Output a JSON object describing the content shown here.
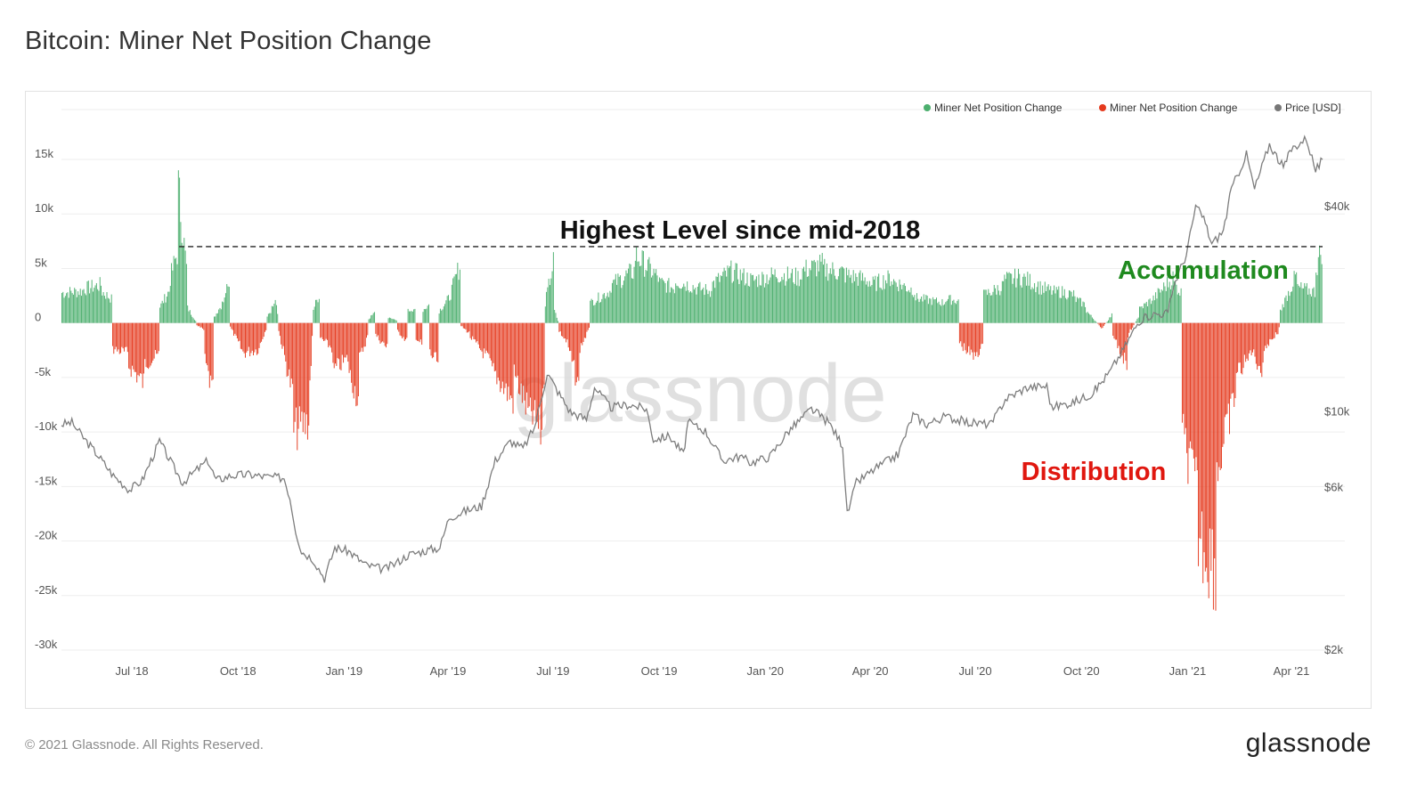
{
  "page": {
    "title": "Bitcoin: Miner Net Position Change",
    "footer": "© 2021 Glassnode. All Rights Reserved.",
    "brand": "glassnode",
    "watermark": "glassnode"
  },
  "chart_data": {
    "type": "bar",
    "title": "Bitcoin: Miner Net Position Change",
    "x_range": [
      "2018-05-01",
      "2021-04-28"
    ],
    "x_ticks": [
      {
        "date": "2018-07-01",
        "label": "Jul '18"
      },
      {
        "date": "2018-10-01",
        "label": "Oct '18"
      },
      {
        "date": "2019-01-01",
        "label": "Jan '19"
      },
      {
        "date": "2019-04-01",
        "label": "Apr '19"
      },
      {
        "date": "2019-07-01",
        "label": "Jul '19"
      },
      {
        "date": "2019-10-01",
        "label": "Oct '19"
      },
      {
        "date": "2020-01-01",
        "label": "Jan '20"
      },
      {
        "date": "2020-04-01",
        "label": "Apr '20"
      },
      {
        "date": "2020-07-01",
        "label": "Jul '20"
      },
      {
        "date": "2020-10-01",
        "label": "Oct '20"
      },
      {
        "date": "2021-01-01",
        "label": "Jan '21"
      },
      {
        "date": "2021-04-01",
        "label": "Apr '21"
      }
    ],
    "y_left": {
      "range": [
        -30000,
        15000
      ],
      "ticks": [
        15000,
        10000,
        5000,
        0,
        -5000,
        -10000,
        -15000,
        -20000,
        -25000,
        -30000
      ],
      "tick_labels": [
        "15k",
        "10k",
        "5k",
        "0",
        "-5k",
        "-10k",
        "-15k",
        "-20k",
        "-25k",
        "-30k"
      ]
    },
    "y_right": {
      "scale": "log",
      "ticks": [
        40000,
        10000,
        6000,
        2000
      ],
      "tick_labels": [
        "$40k",
        "$10k",
        "$6k",
        "$2k"
      ]
    },
    "legend": {
      "position": "top-right",
      "items": [
        {
          "label": "Miner Net Position Change",
          "color": "#4caf6e"
        },
        {
          "label": "Miner Net Position Change",
          "color": "#e53a1e"
        },
        {
          "label": "Price [USD]",
          "color": "#777777"
        }
      ]
    },
    "annotations": {
      "highest": {
        "text": "Highest Level since mid-2018",
        "level": 7000,
        "from": "2018-08-11",
        "to": "2021-04-28"
      },
      "accumulation": {
        "text": "Accumulation",
        "color": "#1f8a1f"
      },
      "distribution": {
        "text": "Distribution",
        "color": "#e0170f"
      }
    },
    "colors": {
      "positive": "#4caf6e",
      "negative": "#e53a1e",
      "price": "#777777",
      "grid": "#eeeeee"
    },
    "net_position_segments": [
      [
        "2018-05-01",
        3000,
        3200
      ],
      [
        "2018-05-20",
        3400,
        3800
      ],
      [
        "2018-06-05",
        3100,
        2400
      ],
      [
        "2018-06-14",
        -2600,
        -3000
      ],
      [
        "2018-06-28",
        -4200,
        -6000
      ],
      [
        "2018-07-12",
        -4000,
        -3200
      ],
      [
        "2018-07-25",
        1600,
        3200
      ],
      [
        "2018-08-03",
        4500,
        7000
      ],
      [
        "2018-08-10",
        13500,
        5500
      ],
      [
        "2018-08-18",
        1500,
        200
      ],
      [
        "2018-08-26",
        -200,
        -700
      ],
      [
        "2018-09-02",
        -3800,
        -7200
      ],
      [
        "2018-09-10",
        600,
        2300
      ],
      [
        "2018-09-20",
        3200,
        3400
      ],
      [
        "2018-09-24",
        -400,
        -2700
      ],
      [
        "2018-10-05",
        -3000,
        -2600
      ],
      [
        "2018-10-20",
        -2000,
        -600
      ],
      [
        "2018-10-26",
        600,
        1800
      ],
      [
        "2018-11-02",
        2400,
        800
      ],
      [
        "2018-11-05",
        -800,
        -7000
      ],
      [
        "2018-11-18",
        -10800,
        -9800
      ],
      [
        "2018-12-02",
        -6000,
        -1500
      ],
      [
        "2018-12-05",
        1400,
        2800
      ],
      [
        "2018-12-11",
        -1500,
        -2500
      ],
      [
        "2018-12-22",
        -4800,
        -3500
      ],
      [
        "2019-01-05",
        -5000,
        -7600
      ],
      [
        "2019-01-14",
        -3600,
        -1300
      ],
      [
        "2019-01-22",
        400,
        1000
      ],
      [
        "2019-01-28",
        -1200,
        -2500
      ],
      [
        "2019-02-08",
        500,
        300
      ],
      [
        "2019-02-16",
        -800,
        -1800
      ],
      [
        "2019-02-25",
        1200,
        1500
      ],
      [
        "2019-03-04",
        -1400,
        -2200
      ],
      [
        "2019-03-10",
        1300,
        1800
      ],
      [
        "2019-03-16",
        -3000,
        -4000
      ],
      [
        "2019-03-24",
        1200,
        2400
      ],
      [
        "2019-04-02",
        2600,
        5800
      ],
      [
        "2019-04-12",
        -300,
        -1000
      ],
      [
        "2019-04-20",
        -1400,
        -3800
      ],
      [
        "2019-05-08",
        -4500,
        -7800
      ],
      [
        "2019-05-28",
        -5000,
        -9500
      ],
      [
        "2019-06-12",
        -9000,
        -11000
      ],
      [
        "2019-06-22",
        -6000,
        -5500
      ],
      [
        "2019-06-24",
        2000,
        6000
      ],
      [
        "2019-07-02",
        1200,
        200
      ],
      [
        "2019-07-06",
        -800,
        -2000
      ],
      [
        "2019-07-14",
        -2500,
        -6500
      ],
      [
        "2019-07-24",
        -2500,
        -600
      ],
      [
        "2019-08-02",
        2000,
        3200
      ],
      [
        "2019-08-20",
        3800,
        5200
      ],
      [
        "2019-09-10",
        6800,
        4500
      ],
      [
        "2019-10-01",
        4000,
        3500
      ],
      [
        "2019-10-15",
        4200,
        3600
      ],
      [
        "2019-11-01",
        3500,
        3200
      ],
      [
        "2019-11-15",
        3800,
        5000
      ],
      [
        "2019-12-01",
        5200,
        4300
      ],
      [
        "2019-12-20",
        4200,
        4800
      ],
      [
        "2020-01-10",
        4900,
        4500
      ],
      [
        "2020-02-01",
        5200,
        5800
      ],
      [
        "2020-02-20",
        5400,
        5000
      ],
      [
        "2020-03-10",
        4800,
        4200
      ],
      [
        "2020-04-01",
        3800,
        4500
      ],
      [
        "2020-04-20",
        4200,
        3200
      ],
      [
        "2020-05-10",
        2500,
        2000
      ],
      [
        "2020-06-05",
        2400,
        2200
      ],
      [
        "2020-06-17",
        -2000,
        -3500
      ],
      [
        "2020-07-01",
        -3000,
        -2500
      ],
      [
        "2020-07-08",
        2800,
        3600
      ],
      [
        "2020-07-25",
        4200,
        4600
      ],
      [
        "2020-08-10",
        4500,
        3800
      ],
      [
        "2020-08-25",
        3600,
        3000
      ],
      [
        "2020-09-10",
        3200,
        2800
      ],
      [
        "2020-09-25",
        2400,
        1800
      ],
      [
        "2020-10-05",
        1200,
        -600
      ],
      [
        "2020-10-20",
        -300,
        800
      ],
      [
        "2020-10-28",
        -1500,
        -4000
      ],
      [
        "2020-11-10",
        -1200,
        600
      ],
      [
        "2020-11-20",
        1400,
        2600
      ],
      [
        "2020-12-05",
        2800,
        4500
      ],
      [
        "2020-12-20",
        4000,
        3000
      ],
      [
        "2020-12-27",
        -11000,
        -17000
      ],
      [
        "2021-01-10",
        -21000,
        -24000
      ],
      [
        "2021-01-26",
        -15000,
        -7000
      ],
      [
        "2021-02-12",
        -5000,
        -3500
      ],
      [
        "2021-02-24",
        -2500,
        -5000
      ],
      [
        "2021-03-08",
        -2500,
        -1000
      ],
      [
        "2021-03-20",
        -1200,
        -400
      ],
      [
        "2021-03-22",
        1200,
        4800
      ],
      [
        "2021-04-06",
        3500,
        3100
      ],
      [
        "2021-04-22",
        5500,
        7400
      ],
      [
        "2021-04-28",
        7000,
        7000
      ]
    ],
    "price_series": [
      [
        "2018-05-01",
        9200
      ],
      [
        "2018-05-10",
        9300
      ],
      [
        "2018-05-20",
        8400
      ],
      [
        "2018-06-01",
        7500
      ],
      [
        "2018-06-15",
        6500
      ],
      [
        "2018-06-29",
        5900
      ],
      [
        "2018-07-10",
        6300
      ],
      [
        "2018-07-25",
        8200
      ],
      [
        "2018-08-05",
        7000
      ],
      [
        "2018-08-14",
        6200
      ],
      [
        "2018-08-25",
        6700
      ],
      [
        "2018-09-05",
        7200
      ],
      [
        "2018-09-12",
        6300
      ],
      [
        "2018-09-25",
        6500
      ],
      [
        "2018-10-10",
        6550
      ],
      [
        "2018-10-25",
        6450
      ],
      [
        "2018-11-10",
        6400
      ],
      [
        "2018-11-15",
        5600
      ],
      [
        "2018-11-20",
        4500
      ],
      [
        "2018-11-25",
        3900
      ],
      [
        "2018-12-05",
        3700
      ],
      [
        "2018-12-15",
        3250
      ],
      [
        "2018-12-24",
        4000
      ],
      [
        "2019-01-05",
        3900
      ],
      [
        "2019-01-20",
        3550
      ],
      [
        "2019-02-05",
        3450
      ],
      [
        "2019-02-15",
        3600
      ],
      [
        "2019-02-25",
        3800
      ],
      [
        "2019-03-10",
        3900
      ],
      [
        "2019-03-25",
        4000
      ],
      [
        "2019-04-02",
        4900
      ],
      [
        "2019-04-15",
        5100
      ],
      [
        "2019-04-30",
        5300
      ],
      [
        "2019-05-12",
        7200
      ],
      [
        "2019-05-25",
        8200
      ],
      [
        "2019-06-05",
        7800
      ],
      [
        "2019-06-15",
        9000
      ],
      [
        "2019-06-26",
        13000
      ],
      [
        "2019-07-05",
        11500
      ],
      [
        "2019-07-16",
        10000
      ],
      [
        "2019-07-30",
        9500
      ],
      [
        "2019-08-06",
        11800
      ],
      [
        "2019-08-20",
        10300
      ],
      [
        "2019-09-05",
        10500
      ],
      [
        "2019-09-20",
        10200
      ],
      [
        "2019-09-26",
        8300
      ],
      [
        "2019-10-10",
        8500
      ],
      [
        "2019-10-22",
        7500
      ],
      [
        "2019-10-26",
        9300
      ],
      [
        "2019-11-10",
        8800
      ],
      [
        "2019-11-25",
        7200
      ],
      [
        "2019-12-10",
        7400
      ],
      [
        "2019-12-20",
        7100
      ],
      [
        "2020-01-05",
        7400
      ],
      [
        "2020-01-20",
        8700
      ],
      [
        "2020-02-10",
        10200
      ],
      [
        "2020-02-25",
        9300
      ],
      [
        "2020-03-08",
        8000
      ],
      [
        "2020-03-12",
        5000
      ],
      [
        "2020-03-20",
        6200
      ],
      [
        "2020-04-05",
        6800
      ],
      [
        "2020-04-25",
        7500
      ],
      [
        "2020-05-08",
        9800
      ],
      [
        "2020-05-20",
        9200
      ],
      [
        "2020-06-05",
        9700
      ],
      [
        "2020-06-25",
        9300
      ],
      [
        "2020-07-15",
        9200
      ],
      [
        "2020-07-27",
        10900
      ],
      [
        "2020-08-15",
        11800
      ],
      [
        "2020-09-01",
        11900
      ],
      [
        "2020-09-05",
        10300
      ],
      [
        "2020-09-25",
        10700
      ],
      [
        "2020-10-10",
        11300
      ],
      [
        "2020-10-25",
        13000
      ],
      [
        "2020-11-05",
        15000
      ],
      [
        "2020-11-20",
        18500
      ],
      [
        "2020-12-01",
        19300
      ],
      [
        "2020-12-15",
        19500
      ],
      [
        "2020-12-20",
        23500
      ],
      [
        "2020-12-31",
        29000
      ],
      [
        "2021-01-08",
        40000
      ],
      [
        "2021-01-15",
        37000
      ],
      [
        "2021-01-22",
        31000
      ],
      [
        "2021-02-01",
        34000
      ],
      [
        "2021-02-08",
        45000
      ],
      [
        "2021-02-21",
        57000
      ],
      [
        "2021-02-28",
        45000
      ],
      [
        "2021-03-13",
        61000
      ],
      [
        "2021-03-25",
        52000
      ],
      [
        "2021-04-01",
        59000
      ],
      [
        "2021-04-14",
        63500
      ],
      [
        "2021-04-22",
        51000
      ],
      [
        "2021-04-28",
        55000
      ]
    ]
  }
}
